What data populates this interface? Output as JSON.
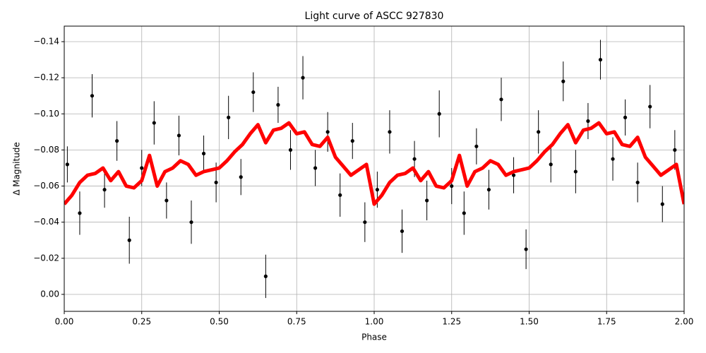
{
  "chart_data": {
    "type": "scatter",
    "title": "Light curve of ASCC 927830",
    "x_label": "Phase",
    "y_label": "Δ Magnitude",
    "xlim": [
      0,
      2
    ],
    "ylim": [
      -0.1486,
      0.0094
    ],
    "y_inverted": true,
    "grid": true,
    "xticks": [
      {
        "value": 0,
        "label": "0.00"
      },
      {
        "value": 0.25,
        "label": "0.25"
      },
      {
        "value": 0.5,
        "label": "0.50"
      },
      {
        "value": 0.75,
        "label": "0.75"
      },
      {
        "value": 1,
        "label": "1.00"
      },
      {
        "value": 1.25,
        "label": "1.25"
      },
      {
        "value": 1.5,
        "label": "1.50"
      },
      {
        "value": 1.75,
        "label": "1.75"
      },
      {
        "value": 2,
        "label": "2.00"
      }
    ],
    "yticks": [
      {
        "value": -0.14,
        "label": "−0.14"
      },
      {
        "value": -0.12,
        "label": "−0.12"
      },
      {
        "value": -0.1,
        "label": "−0.10"
      },
      {
        "value": -0.08,
        "label": "−0.08"
      },
      {
        "value": -0.06,
        "label": "−0.06"
      },
      {
        "value": -0.04,
        "label": "−0.04"
      },
      {
        "value": -0.02,
        "label": "−0.02"
      },
      {
        "value": 0,
        "label": "0.00"
      }
    ],
    "series": [
      {
        "type": "errorbar",
        "color": "#000000",
        "x": [
          0.01,
          0.05,
          0.09,
          0.13,
          0.17,
          0.21,
          0.25,
          0.29,
          0.33,
          0.37,
          0.41,
          0.45,
          0.49,
          0.53,
          0.57,
          0.61,
          0.65,
          0.69,
          0.73,
          0.77,
          0.81,
          0.85,
          0.89,
          0.93,
          0.97,
          1.01,
          1.05,
          1.09,
          1.13,
          1.17,
          1.21,
          1.25,
          1.29,
          1.33,
          1.37,
          1.41,
          1.45,
          1.49,
          1.53,
          1.57,
          1.61,
          1.65,
          1.69,
          1.73,
          1.77,
          1.81,
          1.85,
          1.89,
          1.93,
          1.97
        ],
        "values": [
          -0.072,
          -0.045,
          -0.11,
          -0.058,
          -0.085,
          -0.03,
          -0.07,
          -0.095,
          -0.052,
          -0.088,
          -0.04,
          -0.078,
          -0.062,
          -0.098,
          -0.065,
          -0.112,
          -0.01,
          -0.105,
          -0.08,
          -0.12,
          -0.07,
          -0.09,
          -0.055,
          -0.085,
          -0.04,
          -0.058,
          -0.09,
          -0.035,
          -0.075,
          -0.052,
          -0.1,
          -0.06,
          -0.045,
          -0.082,
          -0.058,
          -0.108,
          -0.066,
          -0.025,
          -0.09,
          -0.072,
          -0.118,
          -0.068,
          -0.096,
          -0.13,
          -0.075,
          -0.098,
          -0.062,
          -0.104,
          -0.05,
          -0.08
        ],
        "errors": [
          0.01,
          0.012,
          0.012,
          0.01,
          0.011,
          0.013,
          0.01,
          0.012,
          0.01,
          0.011,
          0.012,
          0.01,
          0.011,
          0.012,
          0.01,
          0.011,
          0.012,
          0.01,
          0.011,
          0.012,
          0.01,
          0.011,
          0.012,
          0.01,
          0.011,
          0.01,
          0.012,
          0.012,
          0.01,
          0.011,
          0.013,
          0.01,
          0.012,
          0.01,
          0.011,
          0.012,
          0.01,
          0.011,
          0.012,
          0.01,
          0.011,
          0.012,
          0.01,
          0.011,
          0.012,
          0.01,
          0.011,
          0.012,
          0.01,
          0.011
        ]
      },
      {
        "type": "line",
        "color": "#ff0000",
        "x": [
          0,
          0.025,
          0.05,
          0.075,
          0.1,
          0.125,
          0.15,
          0.175,
          0.2,
          0.225,
          0.25,
          0.275,
          0.3,
          0.325,
          0.35,
          0.375,
          0.4,
          0.425,
          0.45,
          0.475,
          0.5,
          0.525,
          0.55,
          0.575,
          0.6,
          0.625,
          0.65,
          0.675,
          0.7,
          0.725,
          0.75,
          0.775,
          0.8,
          0.825,
          0.85,
          0.875,
          0.9,
          0.925,
          0.95,
          0.975,
          1,
          1.025,
          1.05,
          1.075,
          1.1,
          1.125,
          1.15,
          1.175,
          1.2,
          1.225,
          1.25,
          1.275,
          1.3,
          1.325,
          1.35,
          1.375,
          1.4,
          1.425,
          1.45,
          1.475,
          1.5,
          1.525,
          1.55,
          1.575,
          1.6,
          1.625,
          1.65,
          1.675,
          1.7,
          1.725,
          1.75,
          1.775,
          1.8,
          1.825,
          1.85,
          1.875,
          1.9,
          1.925,
          1.95,
          1.975,
          2
        ],
        "values": [
          -0.05,
          -0.055,
          -0.062,
          -0.066,
          -0.067,
          -0.07,
          -0.063,
          -0.068,
          -0.06,
          -0.059,
          -0.063,
          -0.077,
          -0.06,
          -0.068,
          -0.07,
          -0.074,
          -0.072,
          -0.066,
          -0.068,
          -0.069,
          -0.07,
          -0.074,
          -0.079,
          -0.083,
          -0.089,
          -0.094,
          -0.084,
          -0.091,
          -0.092,
          -0.095,
          -0.089,
          -0.09,
          -0.083,
          -0.082,
          -0.087,
          -0.076,
          -0.071,
          -0.066,
          -0.069,
          -0.072,
          -0.05,
          -0.055,
          -0.062,
          -0.066,
          -0.067,
          -0.07,
          -0.063,
          -0.068,
          -0.06,
          -0.059,
          -0.063,
          -0.077,
          -0.06,
          -0.068,
          -0.07,
          -0.074,
          -0.072,
          -0.066,
          -0.068,
          -0.069,
          -0.07,
          -0.074,
          -0.079,
          -0.083,
          -0.089,
          -0.094,
          -0.084,
          -0.091,
          -0.092,
          -0.095,
          -0.089,
          -0.09,
          -0.083,
          -0.082,
          -0.087,
          -0.076,
          -0.071,
          -0.066,
          -0.069,
          -0.072,
          -0.05
        ]
      }
    ]
  }
}
